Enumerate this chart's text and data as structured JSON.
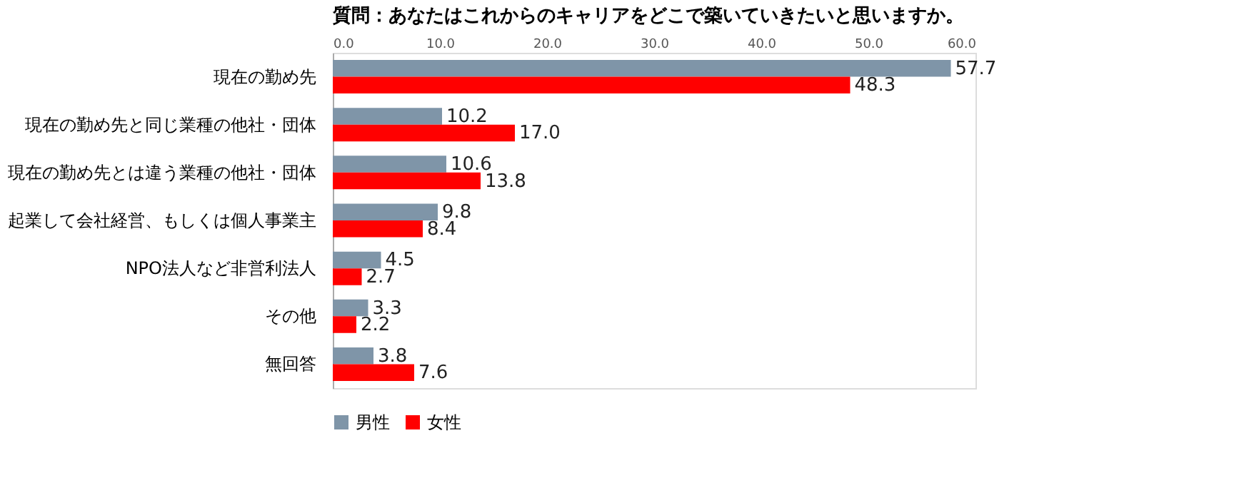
{
  "chart_data": {
    "type": "bar",
    "orientation": "horizontal",
    "title": "質問：あなたはこれからのキャリアをどこで築いていきたいと思いますか。",
    "categories": [
      "現在の勤め先",
      "現在の勤め先と同じ業種の他社・団体",
      "現在の勤め先とは違う業種の他社・団体",
      "起業して会社経営、もしくは個人事業主",
      "NPO法人など非営利法人",
      "その他",
      "無回答"
    ],
    "series": [
      {
        "name": "男性",
        "color": "#7f95a8",
        "values": [
          57.7,
          10.2,
          10.6,
          9.8,
          4.5,
          3.3,
          3.8
        ],
        "value_labels": [
          "57.7",
          "10.2",
          "10.6",
          "9.8",
          "4.5",
          "3.3",
          "3.8"
        ]
      },
      {
        "name": "女性",
        "color": "#ff0000",
        "values": [
          48.3,
          17.0,
          13.8,
          8.4,
          2.7,
          2.2,
          7.6
        ],
        "value_labels": [
          "48.3",
          "17.0",
          "13.8",
          "8.4",
          "2.7",
          "2.2",
          "7.6"
        ]
      }
    ],
    "xlim": [
      0,
      60
    ],
    "xticks": [
      {
        "value": 0,
        "label": "0.0"
      },
      {
        "value": 10,
        "label": "10.0"
      },
      {
        "value": 20,
        "label": "20.0"
      },
      {
        "value": 30,
        "label": "30.0"
      },
      {
        "value": 40,
        "label": "40.0"
      },
      {
        "value": 50,
        "label": "50.0"
      },
      {
        "value": 60,
        "label": "60.0"
      }
    ],
    "legend": "bottom",
    "grid": false
  }
}
